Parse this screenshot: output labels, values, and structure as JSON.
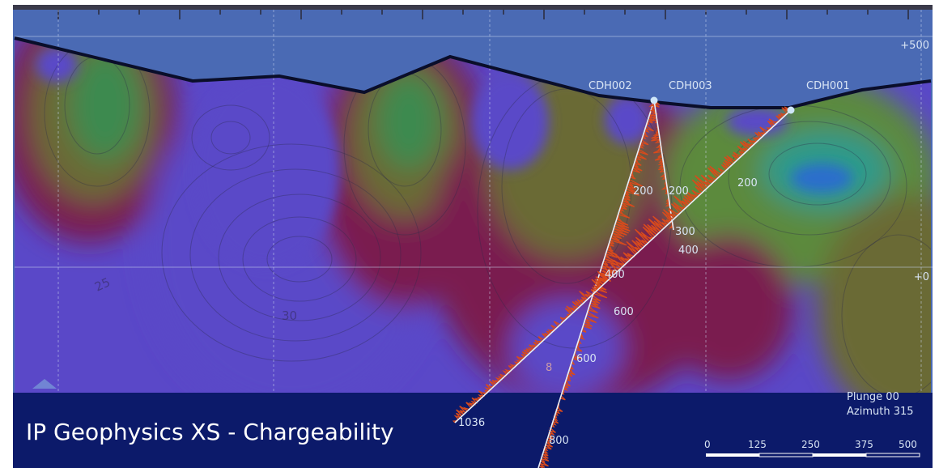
{
  "title": "IP Geophysics XS - Chargeability",
  "orientation": {
    "plunge": "Plunge 00",
    "azimuth": "Azimuth 315"
  },
  "elevation_labels": [
    "+500",
    "+0"
  ],
  "scale_bar": {
    "labels": [
      "0",
      "125",
      "250",
      "375",
      "500"
    ]
  },
  "drillholes": [
    {
      "name": "CDH002",
      "depth_labels": [
        "200",
        "400",
        "600",
        "800"
      ]
    },
    {
      "name": "CDH003",
      "depth_labels": [
        "200",
        "300"
      ]
    },
    {
      "name": "CDH001",
      "depth_labels": [
        "200",
        "400",
        "600",
        "1036"
      ]
    }
  ],
  "contour_labels": [
    "25",
    "30",
    "8"
  ],
  "colors": {
    "background_panel": "#4a6ab4",
    "low_chargeability": "#5a48c8",
    "mid_chargeability": "#5c8a3c",
    "high_chargeability": "#7a1e50",
    "legend_bar": "#0c1a6a",
    "trace_color": "#d84a1c"
  }
}
